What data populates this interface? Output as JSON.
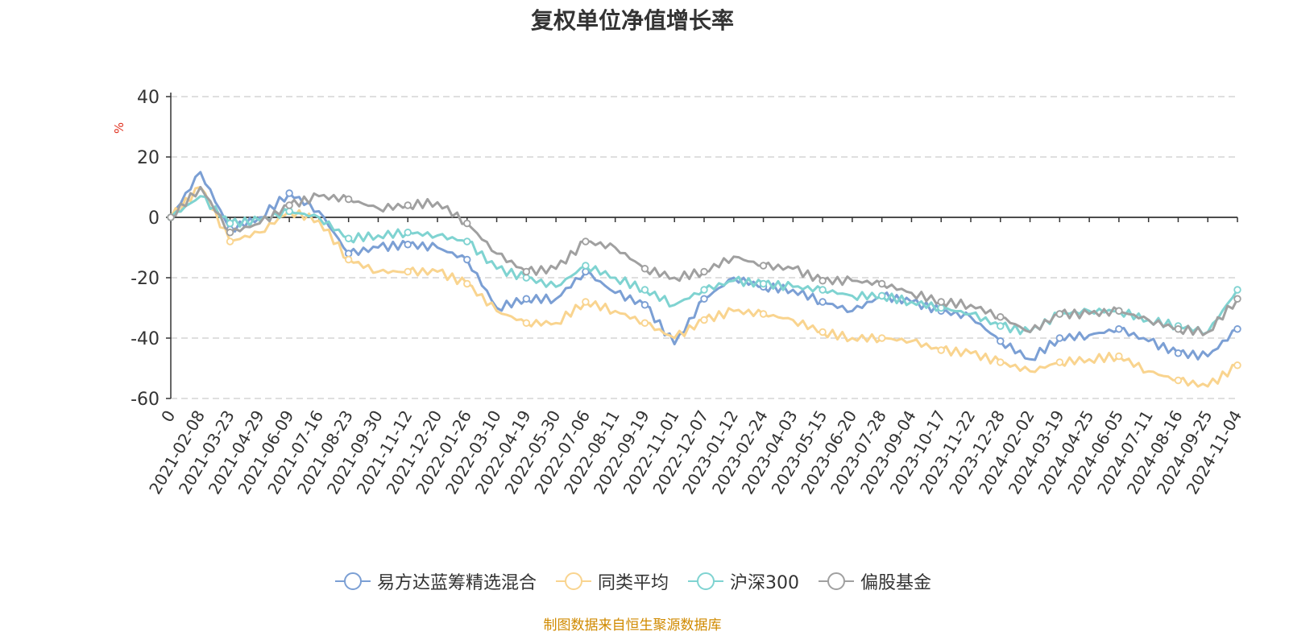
{
  "title": "复权单位净值增长率",
  "unit": "%",
  "source": "制图数据来自恒生聚源数据库",
  "chart_data": {
    "type": "line",
    "title": "复权单位净值增长率",
    "ylabel": "%",
    "ylim": [
      -60,
      40
    ],
    "yticks": [
      40,
      20,
      0,
      -20,
      -40,
      -60
    ],
    "grid": true,
    "legend_position": "bottom",
    "x_tick_labels": [
      "0",
      "2021-02-08",
      "2021-03-23",
      "2021-04-29",
      "2021-06-09",
      "2021-07-16",
      "2021-08-23",
      "2021-09-30",
      "2021-11-12",
      "2021-12-20",
      "2022-01-26",
      "2022-03-10",
      "2022-04-19",
      "2022-05-30",
      "2022-07-06",
      "2022-08-11",
      "2022-09-19",
      "2022-11-01",
      "2022-12-07",
      "2023-01-12",
      "2023-02-24",
      "2023-04-03",
      "2023-05-15",
      "2023-06-20",
      "2023-07-28",
      "2023-09-04",
      "2023-10-17",
      "2023-11-22",
      "2023-12-28",
      "2024-02-02",
      "2024-03-19",
      "2024-04-25",
      "2024-06-05",
      "2024-07-11",
      "2024-08-16",
      "2024-09-25",
      "2024-11-04"
    ],
    "x": [
      "0",
      "2021-02-08",
      "2021-03-23",
      "2021-04-29",
      "2021-06-09",
      "2021-07-16",
      "2021-08-23",
      "2021-09-30",
      "2021-11-12",
      "2021-12-20",
      "2022-01-26",
      "2022-03-10",
      "2022-04-19",
      "2022-05-30",
      "2022-07-06",
      "2022-08-11",
      "2022-09-19",
      "2022-11-01",
      "2022-12-07",
      "2023-01-12",
      "2023-02-24",
      "2023-04-03",
      "2023-05-15",
      "2023-06-20",
      "2023-07-28",
      "2023-09-04",
      "2023-10-17",
      "2023-11-22",
      "2023-12-28",
      "2024-02-02",
      "2024-03-19",
      "2024-04-25",
      "2024-06-05",
      "2024-07-11",
      "2024-08-16",
      "2024-09-25",
      "2024-11-04"
    ],
    "series": [
      {
        "name": "易方达蓝筹精选混合",
        "color": "#7b9fd4",
        "values": [
          0,
          15,
          -4,
          0,
          8,
          2,
          -12,
          -10,
          -9,
          -10,
          -14,
          -30,
          -27,
          -27,
          -18,
          -25,
          -29,
          -42,
          -27,
          -20,
          -23,
          -24,
          -28,
          -31,
          -26,
          -28,
          -31,
          -33,
          -41,
          -47,
          -40,
          -39,
          -37,
          -41,
          -45,
          -46,
          -37
        ]
      },
      {
        "name": "同类平均",
        "color": "#f9d48f",
        "values": [
          0,
          10,
          -8,
          -5,
          2,
          -1,
          -14,
          -18,
          -18,
          -18,
          -22,
          -31,
          -35,
          -35,
          -28,
          -31,
          -35,
          -40,
          -34,
          -31,
          -32,
          -34,
          -38,
          -40,
          -40,
          -41,
          -44,
          -45,
          -48,
          -51,
          -48,
          -47,
          -46,
          -51,
          -54,
          -56,
          -49
        ]
      },
      {
        "name": "沪深300",
        "color": "#7fd3d1",
        "values": [
          0,
          7,
          -2,
          -1,
          2,
          0,
          -7,
          -6,
          -5,
          -6,
          -8,
          -17,
          -20,
          -23,
          -16,
          -20,
          -24,
          -29,
          -24,
          -21,
          -22,
          -23,
          -24,
          -26,
          -26,
          -28,
          -30,
          -32,
          -36,
          -38,
          -32,
          -31,
          -31,
          -34,
          -36,
          -38,
          -24
        ]
      },
      {
        "name": "偏股基金",
        "color": "#a0a0a0",
        "values": [
          0,
          10,
          -5,
          -2,
          4,
          7,
          6,
          3,
          4,
          5,
          -2,
          -12,
          -18,
          -17,
          -8,
          -10,
          -17,
          -20,
          -18,
          -13,
          -16,
          -17,
          -21,
          -21,
          -22,
          -25,
          -28,
          -29,
          -33,
          -38,
          -32,
          -32,
          -31,
          -34,
          -37,
          -38,
          -27
        ]
      }
    ]
  }
}
